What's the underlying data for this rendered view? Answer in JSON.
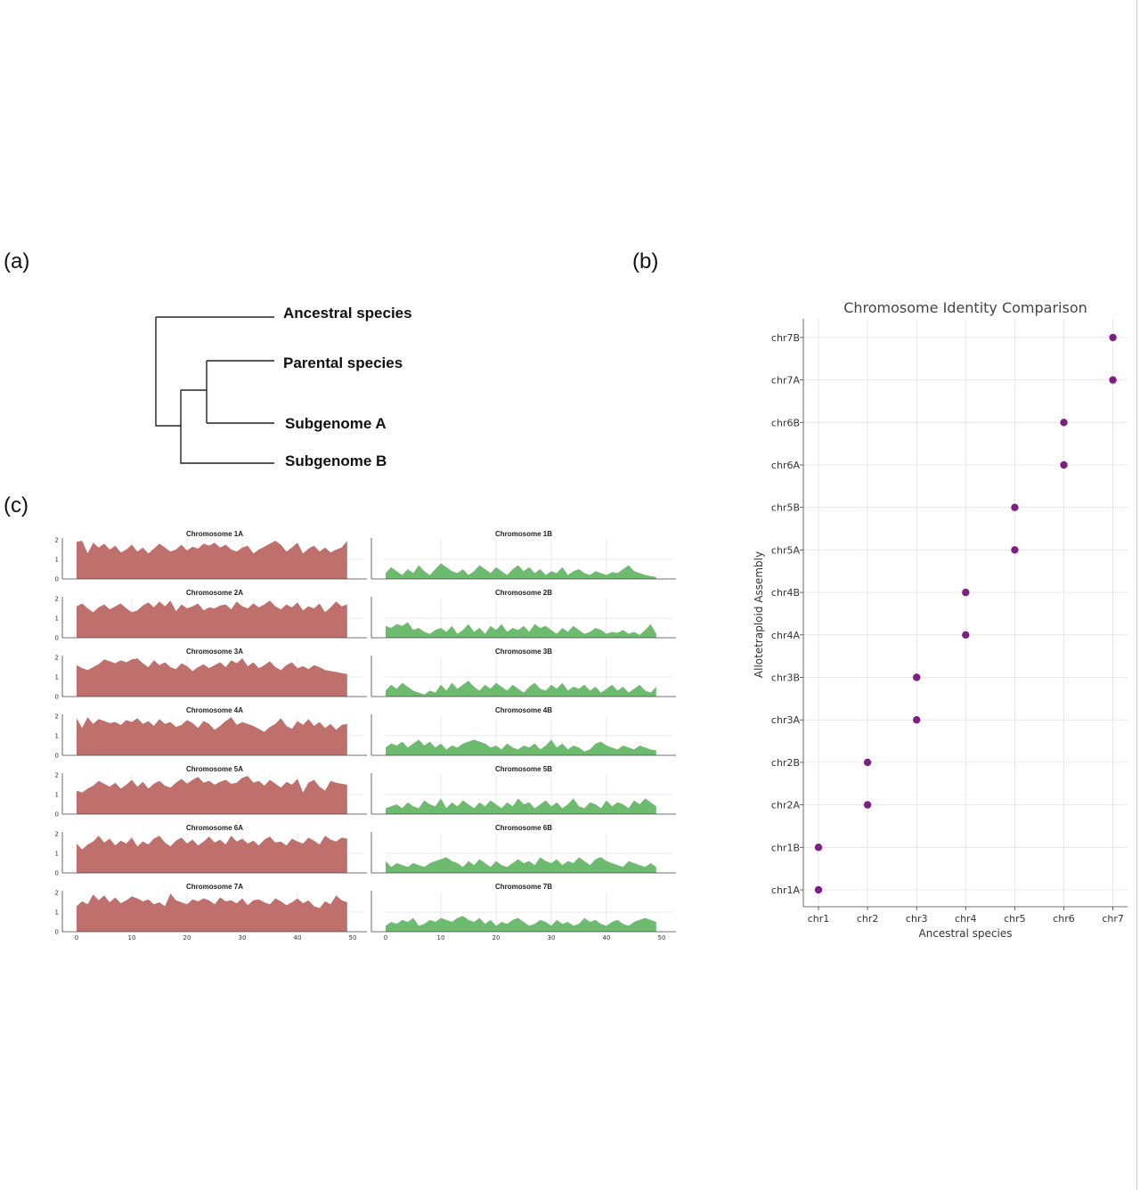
{
  "panels": {
    "a": "(a)",
    "b": "(b)",
    "c": "(c)"
  },
  "tree": {
    "labels": [
      "Ancestral species",
      "Parental species",
      "Subgenome A",
      "Subgenome B"
    ]
  },
  "colors": {
    "subgenome_a": "#c0706c",
    "subgenome_b": "#6dbb6e",
    "dots": "#7f1d86"
  },
  "chart_data": [
    {
      "type": "area",
      "title": "",
      "subgenome": "A",
      "xlim": [
        0,
        50
      ],
      "ylim": [
        0,
        2
      ],
      "xticks": [
        0,
        10,
        20,
        30,
        40,
        50
      ],
      "yticks": [
        0,
        1,
        2
      ],
      "series": [
        {
          "name": "Chromosome 1A",
          "values": [
            1.9,
            1.95,
            1.3,
            1.85,
            1.6,
            1.8,
            1.5,
            1.7,
            1.35,
            1.5,
            1.75,
            1.4,
            1.6,
            1.3,
            1.55,
            1.8,
            1.6,
            1.4,
            1.5,
            1.75,
            1.45,
            1.65,
            1.55,
            1.8,
            1.7,
            1.85,
            1.6,
            1.75,
            1.5,
            1.4,
            1.6,
            1.7,
            1.3,
            1.5,
            1.65,
            1.8,
            1.95,
            1.75,
            1.4,
            1.6,
            1.85,
            1.3,
            1.55,
            1.7,
            1.4,
            1.6,
            1.35,
            1.5,
            1.6,
            1.95
          ]
        },
        {
          "name": "Chromosome 2A",
          "values": [
            1.6,
            1.75,
            1.5,
            1.3,
            1.55,
            1.7,
            1.45,
            1.6,
            1.75,
            1.5,
            1.3,
            1.4,
            1.65,
            1.8,
            1.55,
            1.85,
            1.6,
            1.9,
            1.35,
            1.7,
            1.5,
            1.6,
            1.75,
            1.4,
            1.55,
            1.5,
            1.65,
            1.7,
            1.45,
            1.85,
            1.6,
            1.5,
            1.75,
            1.55,
            1.7,
            1.9,
            1.6,
            1.45,
            1.7,
            1.55,
            1.8,
            1.4,
            1.6,
            1.5,
            1.75,
            1.3,
            1.55,
            1.85,
            1.6,
            1.7
          ]
        },
        {
          "name": "Chromosome 3A",
          "values": [
            1.6,
            1.45,
            1.35,
            1.5,
            1.65,
            1.9,
            1.8,
            1.7,
            1.85,
            1.75,
            1.9,
            1.95,
            1.7,
            1.5,
            1.85,
            1.6,
            1.75,
            1.5,
            1.4,
            1.7,
            1.55,
            1.3,
            1.5,
            1.65,
            1.45,
            1.6,
            1.75,
            1.5,
            1.85,
            1.7,
            1.95,
            1.55,
            1.75,
            1.45,
            1.6,
            1.8,
            1.5,
            1.35,
            1.6,
            1.75,
            1.45,
            1.55,
            1.4,
            1.6,
            1.5,
            1.35,
            1.3,
            1.25,
            1.2,
            1.15
          ]
        },
        {
          "name": "Chromosome 4A",
          "values": [
            1.9,
            1.4,
            1.95,
            1.6,
            1.85,
            1.75,
            1.65,
            1.7,
            1.55,
            1.8,
            1.7,
            1.9,
            1.6,
            1.75,
            1.5,
            1.85,
            1.6,
            1.7,
            1.45,
            1.55,
            1.8,
            1.65,
            1.4,
            1.75,
            1.6,
            1.3,
            1.5,
            1.75,
            1.95,
            1.55,
            1.7,
            1.6,
            1.5,
            1.35,
            1.2,
            1.45,
            1.6,
            1.9,
            1.5,
            1.35,
            1.75,
            1.55,
            1.85,
            1.5,
            1.7,
            1.4,
            1.6,
            1.3,
            1.55,
            1.6
          ]
        },
        {
          "name": "Chromosome 5A",
          "values": [
            1.2,
            1.1,
            1.3,
            1.45,
            1.7,
            1.55,
            1.4,
            1.6,
            1.3,
            1.5,
            1.75,
            1.4,
            1.65,
            1.3,
            1.55,
            1.7,
            1.45,
            1.35,
            1.6,
            1.8,
            1.55,
            1.75,
            1.9,
            1.6,
            1.7,
            1.5,
            1.65,
            1.75,
            1.55,
            1.6,
            1.85,
            1.95,
            1.6,
            1.7,
            1.45,
            1.75,
            1.55,
            1.35,
            1.65,
            1.5,
            1.8,
            1.1,
            1.6,
            1.75,
            1.4,
            1.2,
            1.7,
            1.6,
            1.55,
            1.5
          ]
        },
        {
          "name": "Chromosome 6A",
          "values": [
            1.5,
            1.2,
            1.45,
            1.6,
            1.9,
            1.55,
            1.75,
            1.4,
            1.65,
            1.5,
            1.8,
            1.35,
            1.6,
            1.45,
            1.75,
            1.9,
            1.55,
            1.35,
            1.65,
            1.8,
            1.5,
            1.7,
            1.4,
            1.6,
            1.85,
            1.55,
            1.7,
            1.45,
            1.9,
            1.6,
            1.75,
            1.5,
            1.65,
            1.4,
            1.7,
            1.85,
            1.55,
            1.6,
            1.4,
            1.75,
            1.6,
            1.5,
            1.8,
            1.65,
            1.45,
            1.9,
            1.7,
            1.6,
            1.8,
            1.75
          ]
        },
        {
          "name": "Chromosome 7A",
          "values": [
            1.3,
            1.55,
            1.4,
            1.9,
            1.6,
            1.85,
            1.5,
            1.75,
            1.45,
            1.6,
            1.8,
            1.7,
            1.55,
            1.65,
            1.4,
            1.5,
            1.3,
            1.95,
            1.6,
            1.5,
            1.4,
            1.65,
            1.55,
            1.7,
            1.6,
            1.4,
            1.75,
            1.55,
            1.6,
            1.45,
            1.7,
            1.35,
            1.6,
            1.65,
            1.5,
            1.4,
            1.7,
            1.55,
            1.35,
            1.5,
            1.7,
            1.45,
            1.6,
            1.3,
            1.2,
            1.55,
            1.4,
            1.85,
            1.6,
            1.5
          ]
        }
      ]
    },
    {
      "type": "area",
      "title": "",
      "subgenome": "B",
      "xlim": [
        0,
        50
      ],
      "ylim": [
        0,
        2
      ],
      "xticks": [
        0,
        10,
        20,
        30,
        40,
        50
      ],
      "yticks": [
        0,
        1,
        2
      ],
      "series": [
        {
          "name": "Chromosome 1B",
          "values": [
            0.3,
            0.6,
            0.4,
            0.2,
            0.5,
            0.3,
            0.7,
            0.4,
            0.2,
            0.5,
            0.8,
            0.6,
            0.4,
            0.3,
            0.5,
            0.2,
            0.4,
            0.7,
            0.5,
            0.3,
            0.6,
            0.4,
            0.2,
            0.5,
            0.7,
            0.4,
            0.6,
            0.3,
            0.5,
            0.2,
            0.4,
            0.3,
            0.6,
            0.2,
            0.4,
            0.5,
            0.3,
            0.2,
            0.4,
            0.3,
            0.2,
            0.35,
            0.3,
            0.5,
            0.7,
            0.4,
            0.3,
            0.2,
            0.15,
            0.1
          ]
        },
        {
          "name": "Chromosome 2B",
          "values": [
            0.6,
            0.5,
            0.7,
            0.6,
            0.8,
            0.4,
            0.5,
            0.3,
            0.2,
            0.4,
            0.5,
            0.3,
            0.6,
            0.2,
            0.4,
            0.7,
            0.3,
            0.5,
            0.2,
            0.6,
            0.4,
            0.7,
            0.3,
            0.5,
            0.4,
            0.6,
            0.3,
            0.7,
            0.5,
            0.6,
            0.4,
            0.2,
            0.5,
            0.3,
            0.6,
            0.4,
            0.2,
            0.3,
            0.5,
            0.4,
            0.2,
            0.3,
            0.25,
            0.4,
            0.2,
            0.3,
            0.15,
            0.4,
            0.7,
            0.2
          ]
        },
        {
          "name": "Chromosome 3B",
          "values": [
            0.3,
            0.6,
            0.4,
            0.7,
            0.5,
            0.3,
            0.2,
            0.1,
            0.3,
            0.2,
            0.6,
            0.3,
            0.7,
            0.4,
            0.6,
            0.8,
            0.5,
            0.3,
            0.6,
            0.4,
            0.7,
            0.5,
            0.3,
            0.6,
            0.4,
            0.2,
            0.5,
            0.7,
            0.4,
            0.3,
            0.6,
            0.4,
            0.7,
            0.3,
            0.5,
            0.4,
            0.6,
            0.3,
            0.5,
            0.2,
            0.4,
            0.6,
            0.3,
            0.5,
            0.2,
            0.4,
            0.6,
            0.3,
            0.2,
            0.5
          ]
        },
        {
          "name": "Chromosome 4B",
          "values": [
            0.4,
            0.6,
            0.5,
            0.7,
            0.4,
            0.6,
            0.8,
            0.5,
            0.7,
            0.4,
            0.6,
            0.3,
            0.5,
            0.4,
            0.6,
            0.7,
            0.8,
            0.7,
            0.6,
            0.4,
            0.5,
            0.3,
            0.6,
            0.4,
            0.3,
            0.5,
            0.4,
            0.6,
            0.3,
            0.5,
            0.8,
            0.4,
            0.6,
            0.3,
            0.5,
            0.4,
            0.2,
            0.3,
            0.6,
            0.7,
            0.5,
            0.4,
            0.3,
            0.5,
            0.4,
            0.3,
            0.5,
            0.4,
            0.3,
            0.25
          ]
        },
        {
          "name": "Chromosome 5B",
          "values": [
            0.3,
            0.4,
            0.5,
            0.3,
            0.6,
            0.4,
            0.3,
            0.7,
            0.5,
            0.4,
            0.8,
            0.3,
            0.6,
            0.4,
            0.7,
            0.5,
            0.3,
            0.6,
            0.4,
            0.7,
            0.5,
            0.3,
            0.6,
            0.4,
            0.8,
            0.5,
            0.6,
            0.3,
            0.5,
            0.7,
            0.4,
            0.6,
            0.3,
            0.5,
            0.8,
            0.4,
            0.3,
            0.6,
            0.5,
            0.3,
            0.7,
            0.4,
            0.6,
            0.5,
            0.3,
            0.7,
            0.5,
            0.8,
            0.6,
            0.4
          ]
        },
        {
          "name": "Chromosome 6B",
          "values": [
            0.6,
            0.3,
            0.5,
            0.4,
            0.3,
            0.5,
            0.4,
            0.3,
            0.5,
            0.6,
            0.7,
            0.8,
            0.6,
            0.5,
            0.3,
            0.6,
            0.4,
            0.7,
            0.5,
            0.3,
            0.6,
            0.4,
            0.3,
            0.5,
            0.7,
            0.5,
            0.6,
            0.4,
            0.8,
            0.6,
            0.5,
            0.7,
            0.4,
            0.6,
            0.5,
            0.8,
            0.6,
            0.4,
            0.7,
            0.8,
            0.6,
            0.5,
            0.4,
            0.3,
            0.6,
            0.5,
            0.4,
            0.3,
            0.5,
            0.3
          ]
        },
        {
          "name": "Chromosome 7B",
          "values": [
            0.3,
            0.5,
            0.4,
            0.6,
            0.5,
            0.7,
            0.3,
            0.4,
            0.6,
            0.5,
            0.7,
            0.6,
            0.5,
            0.7,
            0.8,
            0.6,
            0.5,
            0.7,
            0.4,
            0.6,
            0.3,
            0.5,
            0.4,
            0.6,
            0.7,
            0.5,
            0.3,
            0.4,
            0.6,
            0.5,
            0.3,
            0.6,
            0.4,
            0.5,
            0.3,
            0.4,
            0.7,
            0.5,
            0.6,
            0.4,
            0.3,
            0.5,
            0.6,
            0.4,
            0.3,
            0.5,
            0.6,
            0.7,
            0.6,
            0.5
          ]
        }
      ]
    },
    {
      "type": "scatter",
      "title": "Chromosome Identity Comparison",
      "xlabel": "Ancestral species",
      "ylabel": "Allotetraploid Assembly",
      "grid": true,
      "x_categories": [
        "chr1",
        "chr2",
        "chr3",
        "chr4",
        "chr5",
        "chr6",
        "chr7"
      ],
      "y_categories": [
        "chr1A",
        "chr1B",
        "chr2A",
        "chr2B",
        "chr3A",
        "chr3B",
        "chr4A",
        "chr4B",
        "chr5A",
        "chr5B",
        "chr6A",
        "chr6B",
        "chr7A",
        "chr7B"
      ],
      "points": [
        {
          "x": "chr1",
          "y": "chr1A"
        },
        {
          "x": "chr1",
          "y": "chr1B"
        },
        {
          "x": "chr2",
          "y": "chr2A"
        },
        {
          "x": "chr2",
          "y": "chr2B"
        },
        {
          "x": "chr3",
          "y": "chr3A"
        },
        {
          "x": "chr3",
          "y": "chr3B"
        },
        {
          "x": "chr4",
          "y": "chr4A"
        },
        {
          "x": "chr4",
          "y": "chr4B"
        },
        {
          "x": "chr5",
          "y": "chr5A"
        },
        {
          "x": "chr5",
          "y": "chr5B"
        },
        {
          "x": "chr6",
          "y": "chr6A"
        },
        {
          "x": "chr6",
          "y": "chr6B"
        },
        {
          "x": "chr7",
          "y": "chr7A"
        },
        {
          "x": "chr7",
          "y": "chr7B"
        }
      ]
    }
  ]
}
